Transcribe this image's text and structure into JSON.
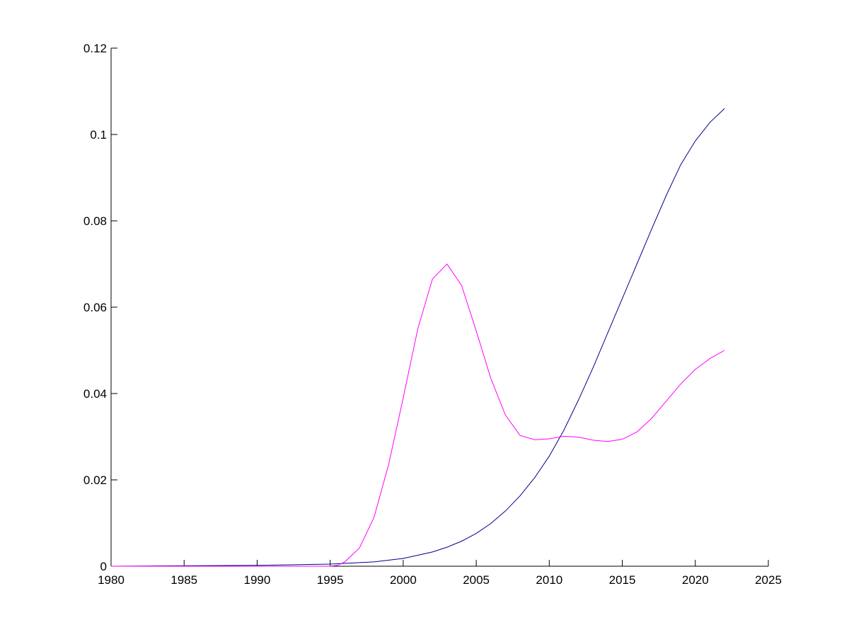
{
  "chart_data": {
    "type": "line",
    "title": "",
    "xlabel": "",
    "ylabel": "",
    "xlim": [
      1980,
      2025
    ],
    "ylim": [
      0,
      0.12
    ],
    "xticks": [
      1980,
      1985,
      1990,
      1995,
      2000,
      2005,
      2010,
      2015,
      2020,
      2025
    ],
    "xtick_labels": [
      "1980",
      "1985",
      "1990",
      "1995",
      "2000",
      "2005",
      "2010",
      "2015",
      "2020",
      "2025"
    ],
    "yticks": [
      0,
      0.02,
      0.04,
      0.06,
      0.08,
      0.1,
      0.12
    ],
    "ytick_labels": [
      "0",
      "0.02",
      "0.04",
      "0.06",
      "0.08",
      "0.1",
      "0.12"
    ],
    "grid": false,
    "legend": "none",
    "series": [
      {
        "color": "#00008b",
        "x": [
          1980,
          1985,
          1990,
          1995,
          1998,
          2000,
          2002,
          2003,
          2004,
          2005,
          2006,
          2007,
          2008,
          2009,
          2010,
          2011,
          2012,
          2013,
          2014,
          2015,
          2016,
          2017,
          2018,
          2019,
          2020,
          2021,
          2022
        ],
        "y": [
          0,
          0.0001,
          0.0002,
          0.0005,
          0.001,
          0.0018,
          0.0033,
          0.0044,
          0.0058,
          0.0076,
          0.0099,
          0.0128,
          0.0163,
          0.0205,
          0.0255,
          0.0315,
          0.0385,
          0.046,
          0.054,
          0.062,
          0.07,
          0.078,
          0.0858,
          0.093,
          0.0985,
          0.1028,
          0.106
        ]
      },
      {
        "color": "#ff00ff",
        "x": [
          1980,
          1985,
          1990,
          1995,
          1995.5,
          1996,
          1997,
          1998,
          1999,
          2000,
          2001,
          2002,
          2003,
          2004,
          2005,
          2006,
          2007,
          2008,
          2009,
          2010,
          2011,
          2012,
          2013,
          2014,
          2015,
          2016,
          2017,
          2018,
          2019,
          2020,
          2021,
          2022
        ],
        "y": [
          0,
          0,
          0,
          0,
          0.0002,
          0.001,
          0.0042,
          0.0113,
          0.0235,
          0.039,
          0.055,
          0.0665,
          0.07,
          0.065,
          0.0545,
          0.0435,
          0.035,
          0.0303,
          0.0293,
          0.0295,
          0.0301,
          0.0299,
          0.0292,
          0.0289,
          0.0294,
          0.0311,
          0.0342,
          0.0382,
          0.0422,
          0.0456,
          0.0481,
          0.05
        ]
      }
    ]
  }
}
